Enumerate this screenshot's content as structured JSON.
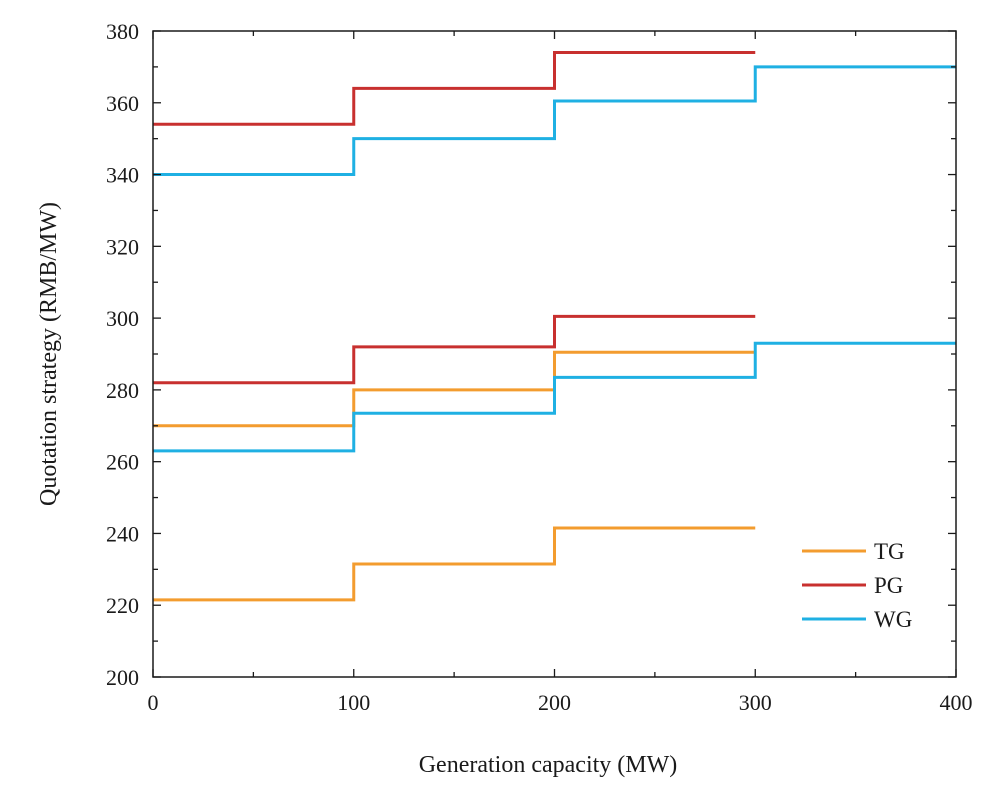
{
  "chart_data": {
    "type": "line",
    "step": "post",
    "xlabel": "Generation capacity (MW)",
    "ylabel": "Quotation strategy (RMB/MW)",
    "xlim": [
      0,
      400
    ],
    "ylim": [
      200,
      380
    ],
    "xticks": [
      0,
      100,
      200,
      300,
      400
    ],
    "yticks": [
      200,
      220,
      240,
      260,
      280,
      300,
      320,
      340,
      360,
      380
    ],
    "grid": false,
    "legend": {
      "position": "bottom-right",
      "entries": [
        "TG",
        "PG",
        "WG"
      ]
    },
    "colors": {
      "TG": "#f39c2f",
      "PG": "#c8302f",
      "WG": "#1fb0e3"
    },
    "series": [
      {
        "name": "TG",
        "points": [
          [
            0,
            221.5
          ],
          [
            100,
            231.5
          ],
          [
            200,
            241.5
          ],
          [
            300,
            241.5
          ]
        ]
      },
      {
        "name": "TG",
        "points": [
          [
            0,
            270
          ],
          [
            100,
            280
          ],
          [
            200,
            290.5
          ],
          [
            300,
            290.5
          ]
        ]
      },
      {
        "name": "PG",
        "points": [
          [
            0,
            282
          ],
          [
            100,
            292
          ],
          [
            200,
            300.5
          ],
          [
            300,
            300.5
          ]
        ]
      },
      {
        "name": "PG",
        "points": [
          [
            0,
            354
          ],
          [
            100,
            364
          ],
          [
            200,
            374
          ],
          [
            300,
            374
          ]
        ]
      },
      {
        "name": "WG",
        "points": [
          [
            0,
            263
          ],
          [
            100,
            273.5
          ],
          [
            200,
            283.5
          ],
          [
            300,
            293
          ],
          [
            400,
            293
          ]
        ]
      },
      {
        "name": "WG",
        "points": [
          [
            0,
            340
          ],
          [
            100,
            350
          ],
          [
            200,
            360.5
          ],
          [
            300,
            370
          ],
          [
            400,
            370
          ]
        ]
      }
    ]
  }
}
